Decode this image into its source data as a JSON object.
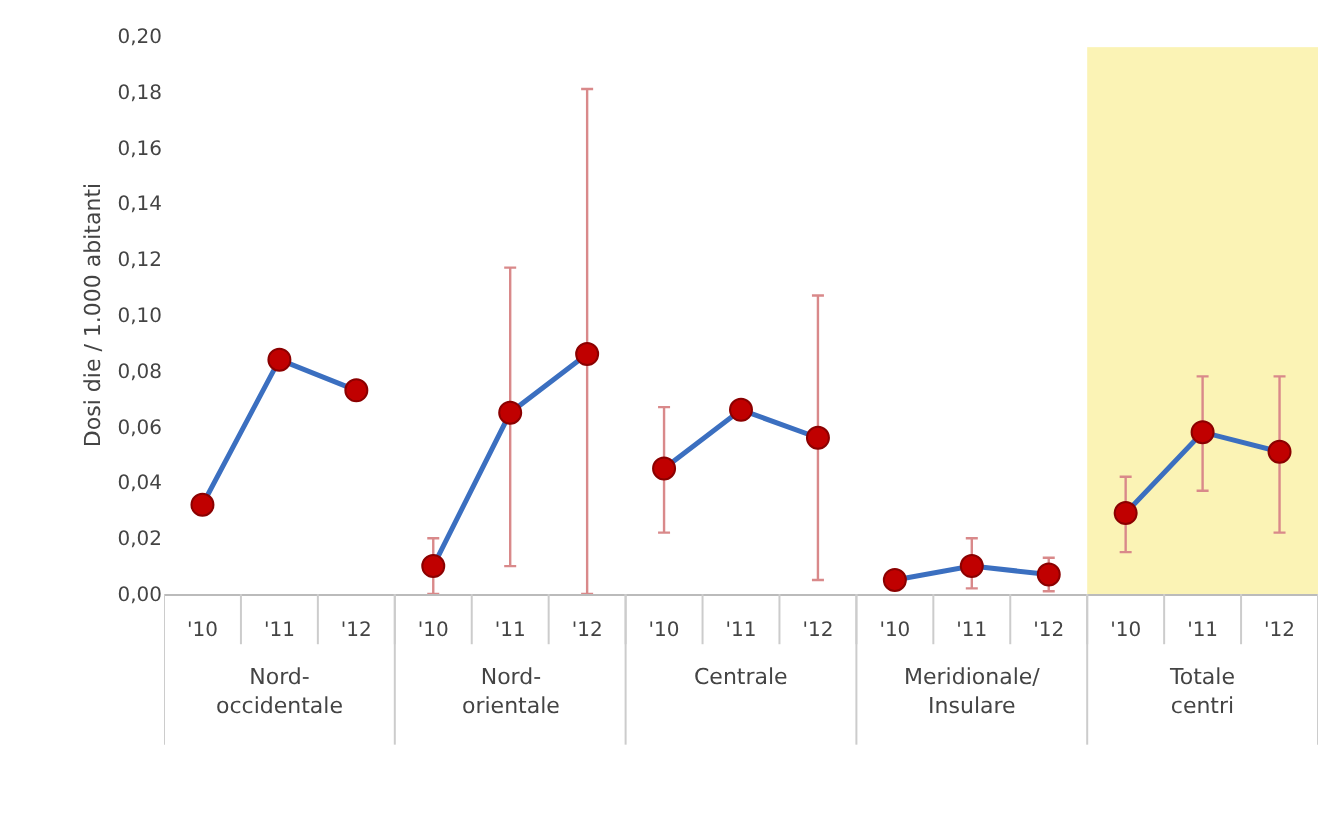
{
  "chart_data": {
    "type": "line",
    "ylabel": "Dosi die / 1.000 abitanti",
    "categories": [
      "'10",
      "'11",
      "'12",
      "'10",
      "'11",
      "'12",
      "'10",
      "'11",
      "'12",
      "'10",
      "'11",
      "'12",
      "'10",
      "'11",
      "'12"
    ],
    "series": [
      {
        "color": "#3b6fc0",
        "colors": [
          "#c00000",
          "#c00000",
          "#c00000",
          null,
          null,
          null,
          null,
          null,
          null,
          null,
          null,
          null,
          null,
          null,
          null
        ],
        "values": [
          0.032,
          0.084,
          0.073,
          null,
          null,
          null,
          null,
          null,
          null,
          null,
          null,
          null,
          null,
          null,
          null
        ],
        "errors": [
          null,
          null,
          null,
          null,
          null,
          null,
          null,
          null,
          null,
          null,
          null,
          null,
          null,
          null,
          null
        ]
      },
      {
        "color": "#3b6fc0",
        "colors": [
          null,
          null,
          null,
          "#c00000",
          "#c00000",
          "#c00000",
          null,
          null,
          null,
          null,
          null,
          null,
          null,
          null,
          null
        ],
        "values": [
          null,
          null,
          null,
          0.01,
          0.065,
          0.086,
          null,
          null,
          null,
          null,
          null,
          null,
          null,
          null,
          null
        ],
        "errors": [
          null,
          null,
          null,
          [
            0.0,
            0.02
          ],
          [
            0.01,
            0.117
          ],
          [
            0.0,
            0.181
          ],
          null,
          null,
          null,
          null,
          null,
          null,
          null,
          null,
          null
        ]
      },
      {
        "color": "#3b6fc0",
        "colors": [
          null,
          null,
          null,
          null,
          null,
          null,
          "#c00000",
          "#c00000",
          "#c00000",
          null,
          null,
          null,
          null,
          null,
          null
        ],
        "values": [
          null,
          null,
          null,
          null,
          null,
          null,
          0.045,
          0.066,
          0.056,
          null,
          null,
          null,
          null,
          null,
          null
        ],
        "errors": [
          null,
          null,
          null,
          null,
          null,
          null,
          [
            0.022,
            0.067
          ],
          null,
          [
            0.005,
            0.107
          ],
          null,
          null,
          null,
          null,
          null,
          null
        ]
      },
      {
        "color": "#3b6fc0",
        "colors": [
          null,
          null,
          null,
          null,
          null,
          null,
          null,
          null,
          null,
          "#c00000",
          "#c00000",
          "#c00000",
          null,
          null,
          null
        ],
        "values": [
          null,
          null,
          null,
          null,
          null,
          null,
          null,
          null,
          null,
          0.005,
          0.01,
          0.007,
          null,
          null,
          null
        ],
        "errors": [
          null,
          null,
          null,
          null,
          null,
          null,
          null,
          null,
          null,
          null,
          [
            0.002,
            0.02
          ],
          [
            0.001,
            0.013
          ],
          null,
          null,
          null
        ]
      },
      {
        "color": "#3b6fc0",
        "colors": [
          null,
          null,
          null,
          null,
          null,
          null,
          null,
          null,
          null,
          null,
          null,
          null,
          "#c00000",
          "#c00000",
          "#c00000"
        ],
        "values": [
          null,
          null,
          null,
          null,
          null,
          null,
          null,
          null,
          null,
          null,
          null,
          null,
          0.029,
          0.058,
          0.051
        ],
        "errors": [
          null,
          null,
          null,
          null,
          null,
          null,
          null,
          null,
          null,
          null,
          null,
          null,
          [
            0.015,
            0.042
          ],
          [
            0.037,
            0.078
          ],
          [
            0.022,
            0.078
          ]
        ]
      }
    ],
    "annotations": [
      "Nord-\noccidentale",
      "Nord-\norientale",
      "Centrale",
      "Meridionale/\nInsulare",
      "Totale\ncentri"
    ],
    "ylim": [
      0,
      0.2
    ],
    "yticks": [
      {
        "value": 0,
        "label": "0,00"
      },
      {
        "value": 0.02,
        "label": "0,02"
      },
      {
        "value": 0.04,
        "label": "0,04"
      },
      {
        "value": 0.06,
        "label": "0,06"
      },
      {
        "value": 0.08,
        "label": "0,08"
      },
      {
        "value": 0.1,
        "label": "0,10"
      },
      {
        "value": 0.12,
        "label": "0,12"
      },
      {
        "value": 0.14,
        "label": "0,14"
      },
      {
        "value": 0.16,
        "label": "0,16"
      },
      {
        "value": 0.18,
        "label": "0,18"
      },
      {
        "value": 0.2,
        "label": "0,20"
      }
    ],
    "grid": false,
    "marker": "circle",
    "line_style": "solid"
  }
}
